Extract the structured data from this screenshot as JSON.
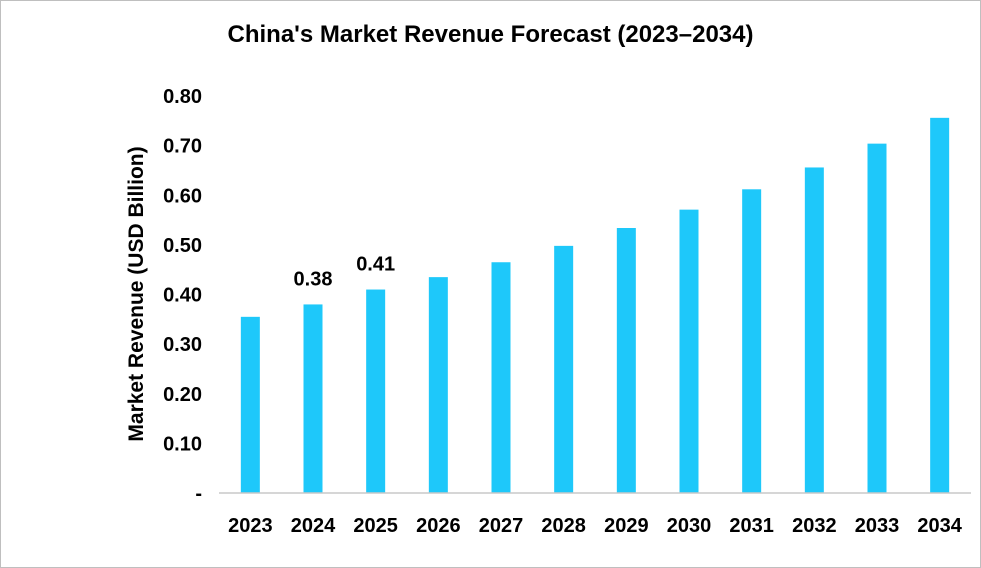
{
  "chart_data": {
    "type": "bar",
    "title": "China's Market Revenue Forecast (2023–2034)",
    "xlabel": "",
    "ylabel": "Market Revenue (USD Billion)",
    "categories": [
      "2023",
      "2024",
      "2025",
      "2026",
      "2027",
      "2028",
      "2029",
      "2030",
      "2031",
      "2032",
      "2033",
      "2034"
    ],
    "values": [
      0.355,
      0.38,
      0.41,
      0.435,
      0.465,
      0.498,
      0.534,
      0.571,
      0.612,
      0.656,
      0.704,
      0.756
    ],
    "ylim": [
      0,
      0.8
    ],
    "yticks": [
      "-",
      "0.10",
      "0.20",
      "0.30",
      "0.40",
      "0.50",
      "0.60",
      "0.70",
      "0.80"
    ],
    "data_labels": [
      {
        "category": "2024",
        "text": "0.38"
      },
      {
        "category": "2025",
        "text": "0.41"
      }
    ],
    "bar_color": "#1ec8fa",
    "grid": false,
    "legend": "none"
  }
}
